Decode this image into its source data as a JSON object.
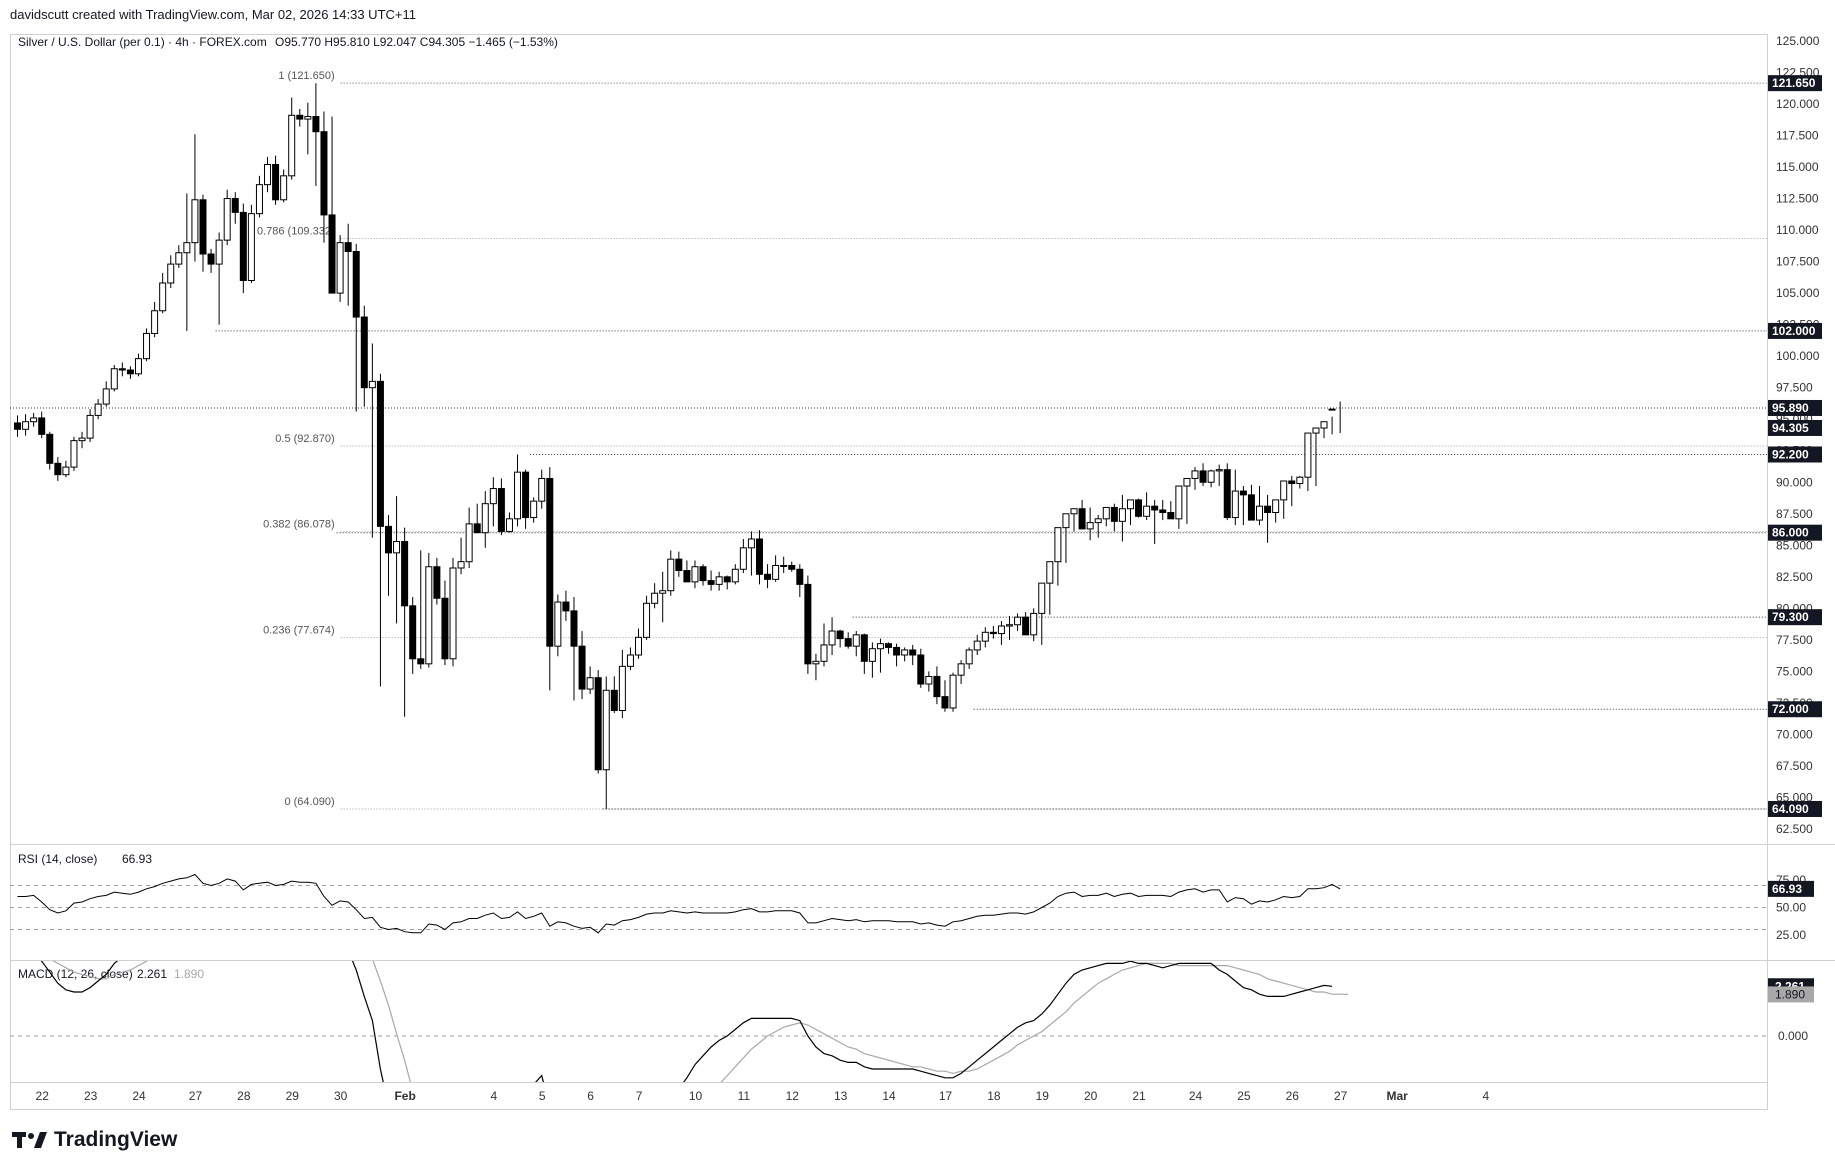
{
  "header": {
    "created_by": "davidscutt created with TradingView.com, Mar 02, 2026 14:33 UTC+11",
    "symbol_line": "Silver / U.S. Dollar (per 0.1) · 4h · FOREX.com",
    "ohlc": "O95.770  H95.810  L92.047  C94.305  −1.465 (−1.53%)"
  },
  "brand": {
    "name": "TradingView",
    "logo_icon": "tradingview-logo-icon"
  },
  "colors": {
    "text": "#131722",
    "candle": "#000000",
    "grid_line": "#9e9e9e",
    "axis_text": "#333333",
    "macd_signal": "#a8a8a8"
  },
  "price_axis": {
    "ticks": [
      "125.000",
      "122.500",
      "120.000",
      "117.500",
      "115.000",
      "112.500",
      "110.000",
      "107.500",
      "105.000",
      "102.500",
      "100.000",
      "97.500",
      "95.000",
      "92.500",
      "90.000",
      "87.500",
      "85.000",
      "82.500",
      "80.000",
      "77.500",
      "75.000",
      "72.500",
      "70.000",
      "67.500",
      "65.000",
      "62.500"
    ],
    "min": 61.5,
    "max": 125.5,
    "level_labels": [
      {
        "price": 121.65,
        "label": "121.650",
        "style": "dark"
      },
      {
        "price": 102.0,
        "label": "102.000",
        "style": "dark"
      },
      {
        "price": 95.89,
        "label": "95.890",
        "style": "dark"
      },
      {
        "price": 94.305,
        "label": "94.305",
        "style": "dark"
      },
      {
        "price": 92.2,
        "label": "92.200",
        "style": "dark"
      },
      {
        "price": 86.0,
        "label": "86.000",
        "style": "dark"
      },
      {
        "price": 79.3,
        "label": "79.300",
        "style": "dark"
      },
      {
        "price": 72.0,
        "label": "72.000",
        "style": "dark"
      },
      {
        "price": 64.09,
        "label": "64.090",
        "style": "dark"
      }
    ]
  },
  "fib_levels": [
    {
      "ratio_label": "1 (121.650)",
      "price": 121.65
    },
    {
      "ratio_label": "0.786 (109.332)",
      "price": 109.332
    },
    {
      "ratio_label": "0.5 (92.870)",
      "price": 92.87
    },
    {
      "ratio_label": "0.382 (86.078)",
      "price": 86.078
    },
    {
      "ratio_label": "0.236 (77.674)",
      "price": 77.674
    },
    {
      "ratio_label": "0 (64.090)",
      "price": 64.09
    }
  ],
  "x_axis": {
    "labels": [
      "22",
      "23",
      "24",
      "27",
      "28",
      "29",
      "30",
      "Feb",
      "4",
      "5",
      "6",
      "7",
      "10",
      "11",
      "12",
      "13",
      "14",
      "17",
      "18",
      "19",
      "20",
      "21",
      "24",
      "25",
      "26",
      "27",
      "Mar",
      "4"
    ],
    "label_bar_index": [
      3.5,
      9.5,
      15.5,
      22.5,
      28.5,
      34.5,
      40.5,
      48.5,
      59.5,
      65.5,
      71.5,
      77.5,
      84.5,
      90.5,
      96.5,
      102.5,
      108.5,
      115.5,
      121.5,
      127.5,
      133.5,
      139.5,
      146.5,
      152.5,
      158.5,
      164.5,
      171.5,
      182.5
    ]
  },
  "rsi": {
    "title": "RSI (14, close)",
    "value_label": "66.93",
    "ticks": [
      "75.00",
      "50.00",
      "25.00"
    ],
    "range": [
      8,
      92
    ],
    "bands": [
      70,
      50,
      30
    ]
  },
  "macd": {
    "title": "MACD (12, 26, close)",
    "macd_value": "2.261",
    "signal_value": "1.890",
    "zero_label": "0.000"
  },
  "chart_data": {
    "type": "candlestick",
    "title": "Silver / U.S. Dollar (per 0.1) · 4h · FOREX.com",
    "timeframe": "4h",
    "ylim": [
      61.5,
      125.5
    ],
    "closes": [
      94.2,
      94.8,
      95.1,
      93.8,
      91.5,
      90.6,
      91.2,
      93.3,
      93.5,
      95.3,
      96.2,
      97.4,
      99.0,
      98.9,
      98.6,
      99.8,
      101.8,
      103.6,
      105.8,
      107.3,
      108.2,
      109.0,
      112.4,
      108.1,
      107.3,
      109.2,
      112.5,
      111.4,
      106.0,
      111.3,
      113.6,
      115.2,
      112.4,
      114.3,
      119.1,
      118.8,
      119.0,
      117.8,
      111.2,
      105.0,
      109.0,
      108.3,
      103.1,
      97.5,
      98.0,
      86.5,
      84.4,
      85.3,
      80.2,
      76.0,
      75.6,
      83.3,
      80.8,
      76.0,
      83.2,
      83.7,
      86.7,
      86.0,
      88.3,
      89.5,
      86.1,
      87.1,
      90.8,
      87.2,
      88.5,
      90.3,
      77.0,
      80.5,
      79.8,
      77.0,
      73.6,
      74.5,
      67.2,
      73.5,
      71.9,
      75.4,
      76.3,
      77.7,
      80.4,
      81.2,
      81.4,
      83.9,
      83.0,
      82.1,
      83.3,
      82.2,
      81.9,
      82.5,
      82.1,
      83.1,
      84.8,
      85.5,
      82.7,
      82.3,
      83.4,
      83.4,
      83.1,
      81.9,
      75.6,
      75.8,
      77.1,
      78.2,
      77.6,
      77.0,
      77.9,
      75.8,
      76.8,
      77.2,
      76.9,
      76.3,
      76.7,
      76.3,
      74.0,
      74.6,
      73.0,
      72.1,
      74.7,
      75.6,
      76.7,
      77.4,
      78.1,
      78.0,
      78.6,
      78.7,
      79.3,
      77.9,
      79.6,
      82.0,
      83.7,
      86.4,
      87.5,
      87.9,
      86.3,
      86.8,
      87.1,
      88.0,
      86.9,
      87.9,
      88.6,
      87.3,
      88.1,
      87.8,
      87.6,
      87.1,
      89.7,
      90.3,
      90.9,
      90.0,
      90.9,
      91.0,
      87.2,
      89.3,
      89.0,
      87.0,
      88.1,
      87.6,
      88.6,
      90.1,
      89.9,
      90.4,
      93.9,
      94.3,
      94.8,
      95.8,
      94.305
    ],
    "opens": [
      94.7,
      94.2,
      94.8,
      95.1,
      93.8,
      91.5,
      90.6,
      91.2,
      93.3,
      93.5,
      95.3,
      96.2,
      97.4,
      99.0,
      98.9,
      98.6,
      99.8,
      101.8,
      103.6,
      105.8,
      107.3,
      108.2,
      109.0,
      112.4,
      108.1,
      107.3,
      109.2,
      112.5,
      111.4,
      106.0,
      111.3,
      113.6,
      115.2,
      112.4,
      114.3,
      119.1,
      118.8,
      119.0,
      117.8,
      111.2,
      105.0,
      109.0,
      108.3,
      103.1,
      97.5,
      98.0,
      86.5,
      84.4,
      85.3,
      80.2,
      76.0,
      75.6,
      83.3,
      80.8,
      76.0,
      83.2,
      83.7,
      86.7,
      86.0,
      88.3,
      89.5,
      86.1,
      87.1,
      90.8,
      87.2,
      88.5,
      90.3,
      77.0,
      80.5,
      79.8,
      77.0,
      73.6,
      74.5,
      67.2,
      73.5,
      71.9,
      75.4,
      76.3,
      77.7,
      80.4,
      81.2,
      81.4,
      83.9,
      83.0,
      82.1,
      83.3,
      82.2,
      81.9,
      82.5,
      82.1,
      83.1,
      84.8,
      85.5,
      82.7,
      82.3,
      83.4,
      83.4,
      83.1,
      81.9,
      75.6,
      75.8,
      77.1,
      78.2,
      77.6,
      77.0,
      77.9,
      75.8,
      76.8,
      77.2,
      76.9,
      76.3,
      76.7,
      76.3,
      74.0,
      74.6,
      73.0,
      72.1,
      74.7,
      75.6,
      76.7,
      77.4,
      78.1,
      78.0,
      78.6,
      78.7,
      79.3,
      77.9,
      79.6,
      82.0,
      83.7,
      86.4,
      87.5,
      87.9,
      86.3,
      86.8,
      87.1,
      88.0,
      86.9,
      87.9,
      88.6,
      87.3,
      88.1,
      87.8,
      87.6,
      87.1,
      89.7,
      90.3,
      90.9,
      90.0,
      90.9,
      91.0,
      87.2,
      89.3,
      89.0,
      87.0,
      88.1,
      87.6,
      88.6,
      90.1,
      89.9,
      90.4,
      93.9,
      94.3,
      95.77
    ],
    "highs": [
      95.3,
      95.4,
      95.5,
      95.6,
      94.0,
      92.0,
      91.7,
      93.6,
      94.0,
      95.8,
      96.6,
      98.0,
      99.3,
      99.5,
      99.2,
      100.2,
      102.2,
      104.3,
      106.6,
      108.0,
      108.8,
      112.9,
      117.6,
      112.8,
      108.5,
      109.8,
      113.2,
      113.0,
      112.1,
      112.0,
      114.3,
      115.8,
      115.9,
      114.8,
      120.5,
      119.6,
      120.1,
      121.65,
      119.4,
      119.0,
      109.6,
      110.5,
      108.9,
      104.0,
      101.0,
      98.6,
      87.4,
      88.9,
      86.4,
      80.9,
      84.6,
      84.4,
      84.0,
      82.2,
      84.0,
      85.6,
      88.0,
      88.3,
      89.3,
      90.4,
      90.3,
      87.6,
      92.2,
      91.0,
      88.8,
      91.0,
      91.2,
      81.1,
      81.4,
      80.9,
      78.2,
      75.4,
      75.1,
      74.6,
      74.6,
      76.7,
      76.9,
      78.4,
      81.0,
      82.0,
      82.9,
      84.6,
      84.5,
      83.8,
      83.8,
      83.5,
      83.0,
      82.9,
      82.6,
      83.5,
      85.5,
      86.1,
      86.2,
      83.5,
      84.2,
      84.1,
      83.7,
      83.5,
      82.6,
      76.4,
      78.8,
      79.3,
      78.3,
      78.1,
      78.2,
      78.0,
      77.3,
      77.6,
      77.3,
      77.2,
      76.9,
      77.1,
      76.8,
      75.0,
      75.4,
      74.3,
      74.9,
      75.9,
      76.9,
      77.9,
      78.5,
      78.6,
      79.0,
      79.4,
      79.6,
      79.7,
      80.0,
      80.5,
      82.5,
      84.0,
      86.8,
      87.9,
      88.6,
      88.0,
      87.4,
      87.6,
      88.3,
      89.0,
      88.5,
      88.7,
      89.2,
      88.6,
      88.6,
      88.5,
      88.1,
      90.2,
      91.2,
      91.5,
      91.0,
      91.4,
      91.5,
      91.0,
      89.7,
      89.8,
      89.7,
      89.0,
      88.5,
      89.2,
      90.5,
      90.5,
      90.7,
      94.2,
      94.7,
      95.2,
      96.4,
      95.81
    ],
    "lows": [
      93.6,
      93.7,
      94.4,
      93.5,
      91.0,
      90.1,
      90.4,
      90.9,
      92.7,
      93.2,
      95.0,
      96.0,
      97.2,
      98.4,
      98.2,
      98.4,
      99.6,
      101.5,
      103.4,
      105.4,
      107.0,
      102.0,
      107.5,
      106.7,
      106.6,
      102.5,
      108.8,
      110.5,
      105.0,
      105.8,
      111.0,
      113.0,
      112.0,
      112.2,
      114.0,
      118.2,
      116.0,
      113.5,
      109.0,
      106.5,
      104.3,
      104.0,
      95.6,
      96.0,
      85.6,
      73.8,
      81.0,
      78.8,
      71.4,
      74.8,
      75.2,
      75.3,
      80.3,
      75.5,
      75.4,
      82.7,
      83.2,
      86.0,
      84.8,
      86.5,
      85.8,
      86.0,
      86.5,
      86.3,
      86.8,
      87.9,
      73.5,
      76.2,
      79.0,
      72.7,
      72.8,
      73.2,
      66.9,
      64.09,
      71.7,
      71.3,
      75.1,
      76.0,
      77.5,
      80.0,
      78.9,
      81.0,
      82.5,
      82.2,
      81.6,
      81.8,
      81.4,
      81.4,
      81.5,
      81.9,
      82.8,
      82.6,
      81.9,
      81.6,
      82.1,
      82.8,
      82.9,
      80.9,
      74.8,
      74.3,
      75.4,
      76.3,
      76.9,
      76.8,
      76.2,
      74.8,
      74.5,
      74.9,
      76.4,
      75.4,
      75.8,
      75.5,
      73.7,
      73.4,
      72.4,
      71.8,
      71.8,
      74.0,
      75.2,
      76.3,
      76.9,
      77.6,
      77.1,
      77.5,
      78.2,
      78.6,
      77.4,
      77.1,
      79.5,
      81.8,
      83.6,
      86.1,
      86.3,
      85.4,
      85.6,
      86.5,
      86.1,
      85.3,
      86.6,
      87.2,
      87.0,
      85.1,
      87.0,
      87.2,
      86.3,
      86.7,
      89.4,
      89.7,
      89.6,
      89.7,
      87.0,
      86.6,
      86.6,
      87.8,
      86.6,
      85.2,
      86.8,
      87.1,
      88.1,
      89.5,
      89.3,
      89.7,
      93.5,
      93.8,
      93.9,
      92.047
    ],
    "support_resistance": [
      121.65,
      102.0,
      95.89,
      92.2,
      86.0,
      79.3,
      72.0,
      64.09
    ],
    "rsi_values": [
      60,
      60,
      61,
      55,
      48,
      45,
      47,
      54,
      55,
      58,
      60,
      61,
      64,
      63,
      62,
      64,
      67,
      69,
      72,
      74,
      76,
      77,
      80,
      72,
      70,
      72,
      76,
      74,
      66,
      71,
      72,
      73,
      70,
      71,
      74,
      73,
      73,
      72,
      60,
      52,
      56,
      55,
      48,
      40,
      41,
      32,
      30,
      31,
      28,
      27,
      27,
      35,
      34,
      30,
      36,
      37,
      40,
      40,
      43,
      45,
      40,
      41,
      46,
      40,
      42,
      45,
      33,
      37,
      36,
      33,
      31,
      32,
      27,
      35,
      34,
      38,
      39,
      41,
      44,
      45,
      45,
      47,
      46,
      45,
      46,
      45,
      45,
      45,
      45,
      46,
      48,
      49,
      46,
      46,
      47,
      47,
      47,
      45,
      36,
      36,
      38,
      40,
      39,
      38,
      39,
      37,
      38,
      38,
      38,
      37,
      37,
      37,
      35,
      36,
      34,
      33,
      37,
      38,
      40,
      42,
      43,
      43,
      44,
      45,
      45,
      44,
      46,
      50,
      54,
      60,
      63,
      64,
      60,
      61,
      61,
      63,
      60,
      62,
      63,
      60,
      61,
      61,
      61,
      60,
      64,
      66,
      67,
      64,
      66,
      66,
      55,
      59,
      58,
      53,
      56,
      55,
      57,
      60,
      59,
      60,
      67,
      67,
      68,
      71,
      66.93
    ],
    "macd_values": [
      4.0,
      3.9,
      3.8,
      3.4,
      2.9,
      2.4,
      2.1,
      2.0,
      2.0,
      2.2,
      2.5,
      2.8,
      3.3,
      3.6,
      3.8,
      4.1,
      4.5,
      5.0,
      5.7,
      6.3,
      6.8,
      7.2,
      8.0,
      7.8,
      7.3,
      7.1,
      7.3,
      7.2,
      6.6,
      6.5,
      6.7,
      7.0,
      6.8,
      6.7,
      7.2,
      7.4,
      7.5,
      7.4,
      6.3,
      4.9,
      4.4,
      3.9,
      3.0,
      1.8,
      0.7,
      -1.5,
      -3.2,
      -4.3,
      -5.8,
      -7.2,
      -8.1,
      -8.0,
      -8.0,
      -8.3,
      -7.7,
      -7.0,
      -6.2,
      -5.5,
      -4.7,
      -3.9,
      -3.6,
      -3.2,
      -2.6,
      -2.5,
      -2.2,
      -1.8,
      -3.2,
      -3.9,
      -4.5,
      -5.2,
      -6.0,
      -6.4,
      -7.5,
      -7.4,
      -7.5,
      -7.2,
      -6.7,
      -6.1,
      -5.4,
      -4.6,
      -3.9,
      -3.1,
      -2.4,
      -1.9,
      -1.3,
      -0.9,
      -0.5,
      -0.2,
      0.0,
      0.3,
      0.6,
      0.8,
      0.8,
      0.8,
      0.8,
      0.8,
      0.8,
      0.7,
      0.0,
      -0.5,
      -0.8,
      -0.9,
      -1.1,
      -1.2,
      -1.2,
      -1.4,
      -1.5,
      -1.5,
      -1.5,
      -1.5,
      -1.5,
      -1.5,
      -1.6,
      -1.7,
      -1.8,
      -1.9,
      -1.9,
      -1.7,
      -1.4,
      -1.1,
      -0.8,
      -0.5,
      -0.2,
      0.1,
      0.4,
      0.6,
      0.7,
      1.0,
      1.4,
      1.9,
      2.4,
      2.8,
      3.0,
      3.1,
      3.2,
      3.3,
      3.3,
      3.3,
      3.4,
      3.3,
      3.3,
      3.2,
      3.1,
      3.2,
      3.3,
      3.3,
      3.3,
      3.3,
      3.3,
      3.0,
      2.8,
      2.5,
      2.2,
      2.1,
      1.9,
      1.8,
      1.8,
      1.8,
      1.9,
      2.0,
      2.1,
      2.2,
      2.3,
      2.261
    ],
    "signal_values": [
      3.7,
      3.7,
      3.7,
      3.6,
      3.5,
      3.3,
      3.1,
      2.9,
      2.8,
      2.7,
      2.6,
      2.6,
      2.8,
      2.9,
      3.0,
      3.2,
      3.4,
      3.7,
      4.1,
      4.5,
      4.9,
      5.3,
      5.6,
      5.8,
      6.0,
      6.1,
      6.3,
      6.4,
      6.5,
      6.6,
      6.7,
      6.8,
      6.8,
      6.8,
      6.9,
      7.0,
      7.1,
      7.2,
      7.0,
      6.6,
      6.0,
      5.4,
      4.8,
      4.1,
      3.5,
      2.5,
      1.4,
      0.1,
      -1.1,
      -2.5,
      -3.7,
      -4.7,
      -5.4,
      -5.9,
      -6.2,
      -6.3,
      -6.3,
      -6.1,
      -5.8,
      -5.5,
      -5.1,
      -4.8,
      -4.4,
      -4.0,
      -3.7,
      -3.3,
      -3.2,
      -3.2,
      -3.4,
      -3.7,
      -4.1,
      -4.5,
      -5.0,
      -5.4,
      -5.8,
      -6.0,
      -6.2,
      -6.1,
      -5.9,
      -5.7,
      -5.3,
      -4.9,
      -4.4,
      -4.0,
      -3.5,
      -3.1,
      -2.6,
      -2.2,
      -1.8,
      -1.4,
      -1.0,
      -0.6,
      -0.3,
      0.0,
      0.2,
      0.4,
      0.5,
      0.6,
      0.5,
      0.3,
      0.1,
      -0.1,
      -0.3,
      -0.5,
      -0.6,
      -0.8,
      -0.9,
      -1.0,
      -1.1,
      -1.2,
      -1.3,
      -1.4,
      -1.4,
      -1.5,
      -1.6,
      -1.6,
      -1.7,
      -1.6,
      -1.6,
      -1.5,
      -1.3,
      -1.1,
      -0.9,
      -0.7,
      -0.4,
      -0.2,
      0.0,
      0.2,
      0.5,
      0.8,
      1.1,
      1.5,
      1.8,
      2.1,
      2.4,
      2.6,
      2.8,
      3.0,
      3.1,
      3.2,
      3.3,
      3.3,
      3.3,
      3.3,
      3.2,
      3.2,
      3.2,
      3.2,
      3.2,
      3.2,
      3.2,
      3.1,
      3.0,
      2.9,
      2.8,
      2.6,
      2.5,
      2.4,
      2.3,
      2.2,
      2.1,
      2.0,
      2.0,
      1.9,
      1.9,
      1.89
    ]
  }
}
